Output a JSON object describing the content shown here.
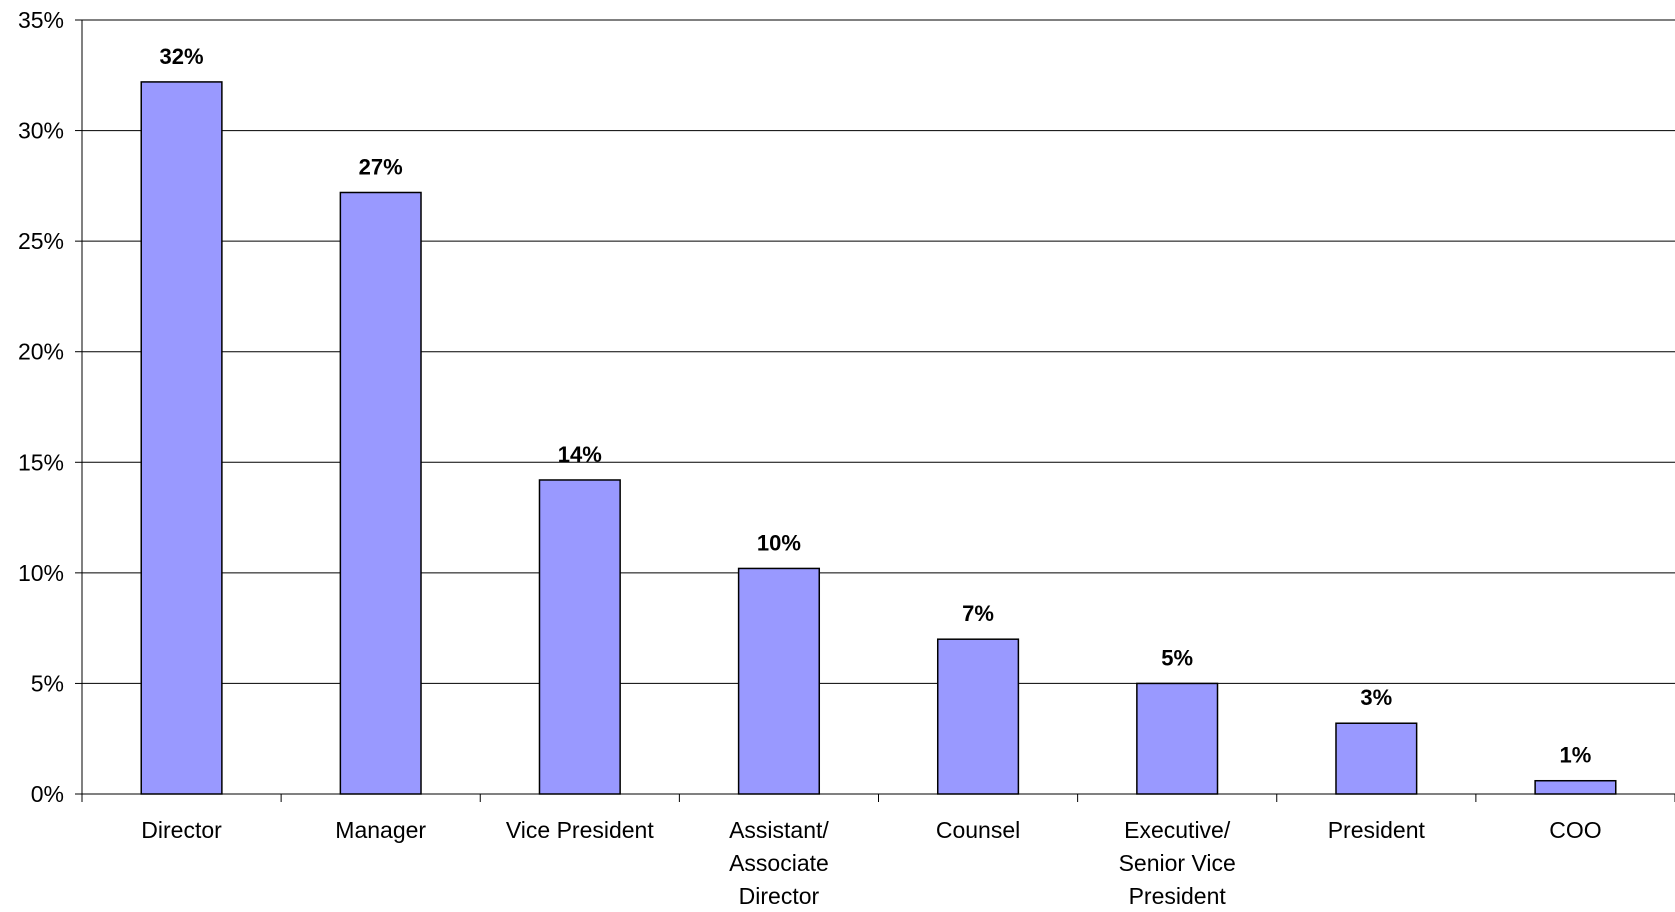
{
  "chart_data": {
    "type": "bar",
    "title": "",
    "xlabel": "",
    "ylabel": "",
    "categories": [
      [
        "Director"
      ],
      [
        "Manager"
      ],
      [
        "Vice President"
      ],
      [
        "Assistant/",
        "Associate",
        "Director"
      ],
      [
        "Counsel"
      ],
      [
        "Executive/",
        "Senior Vice",
        "President"
      ],
      [
        "President"
      ],
      [
        "COO"
      ]
    ],
    "values": [
      32.2,
      27.2,
      14.2,
      10.2,
      7.0,
      5.0,
      3.2,
      0.6
    ],
    "data_labels": [
      "32%",
      "27%",
      "14%",
      "10%",
      "7%",
      "5%",
      "3%",
      "1%"
    ],
    "y_ticks": [
      0,
      5,
      10,
      15,
      20,
      25,
      30,
      35
    ],
    "y_tick_labels": [
      "0%",
      "5%",
      "10%",
      "15%",
      "20%",
      "25%",
      "30%",
      "35%"
    ],
    "ylim": [
      0,
      35
    ],
    "grid": true,
    "legend": "none",
    "colors": {
      "bar_fill": "#9999FF",
      "bar_stroke": "#000000",
      "grid": "#000000",
      "axis": "#000000"
    }
  }
}
